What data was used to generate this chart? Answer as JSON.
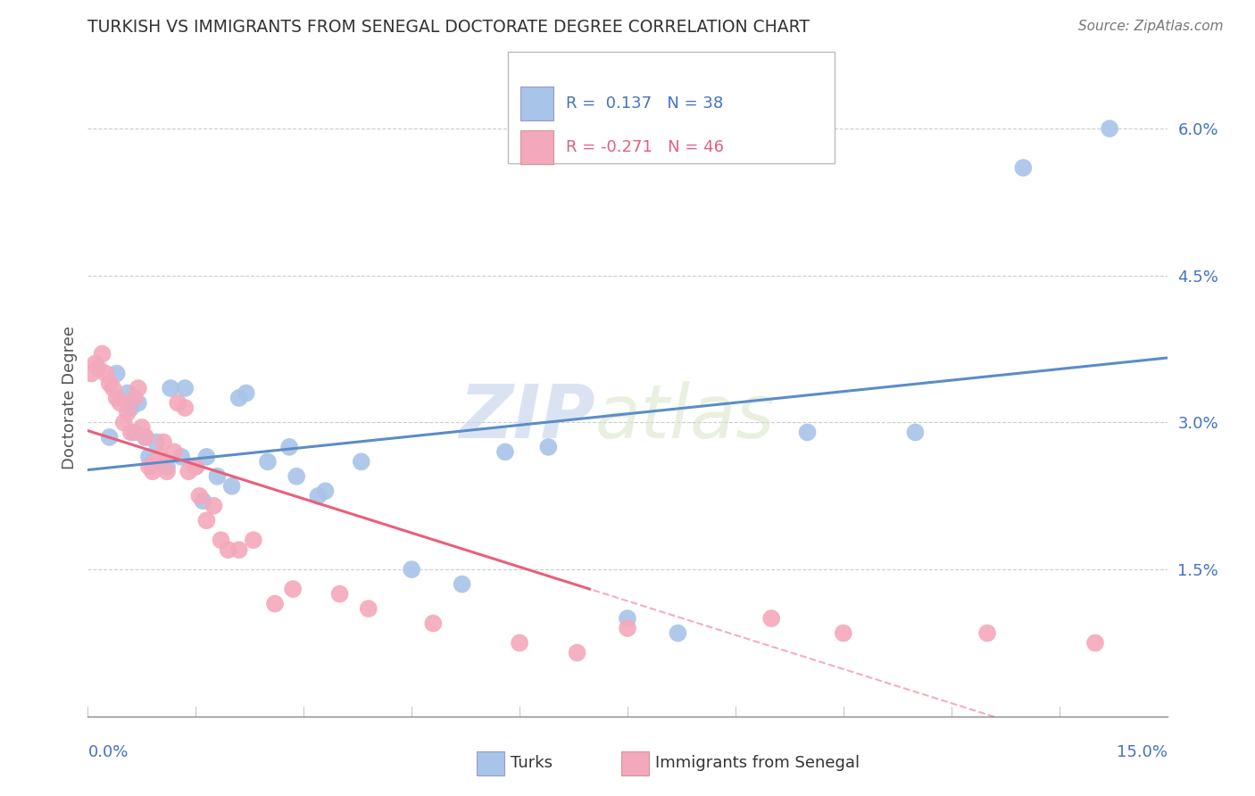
{
  "title": "TURKISH VS IMMIGRANTS FROM SENEGAL DOCTORATE DEGREE CORRELATION CHART",
  "source": "Source: ZipAtlas.com",
  "ylabel": "Doctorate Degree",
  "yaxis_ticks": [
    0.0,
    1.5,
    3.0,
    4.5,
    6.0
  ],
  "yaxis_labels": [
    "",
    "1.5%",
    "3.0%",
    "4.5%",
    "6.0%"
  ],
  "xmin": 0.0,
  "xmax": 15.0,
  "ymin": 0.0,
  "ymax": 6.5,
  "turks_color": "#a8c4e8",
  "turks_line_color": "#5b8dc8",
  "senegal_color": "#f4a8bc",
  "senegal_line_color": "#e8607a",
  "watermark_zip": "ZIP",
  "watermark_atlas": "atlas",
  "turks_x": [
    0.3,
    0.4,
    0.55,
    0.6,
    0.65,
    0.7,
    0.8,
    0.85,
    0.9,
    0.95,
    1.05,
    1.1,
    1.15,
    1.3,
    1.35,
    1.5,
    1.6,
    1.65,
    1.8,
    2.0,
    2.1,
    2.2,
    2.5,
    2.8,
    2.9,
    3.2,
    3.3,
    3.8,
    4.5,
    5.2,
    5.8,
    6.4,
    7.5,
    8.2,
    10.0,
    11.5,
    13.0,
    14.2
  ],
  "turks_y": [
    2.85,
    3.5,
    3.3,
    3.15,
    2.9,
    3.2,
    2.85,
    2.65,
    2.6,
    2.8,
    2.6,
    2.55,
    3.35,
    2.65,
    3.35,
    2.55,
    2.2,
    2.65,
    2.45,
    2.35,
    3.25,
    3.3,
    2.6,
    2.75,
    2.45,
    2.25,
    2.3,
    2.6,
    1.5,
    1.35,
    2.7,
    2.75,
    1.0,
    0.85,
    2.9,
    2.9,
    5.6,
    6.0
  ],
  "senegal_x": [
    0.05,
    0.1,
    0.15,
    0.2,
    0.25,
    0.3,
    0.35,
    0.4,
    0.45,
    0.5,
    0.55,
    0.6,
    0.65,
    0.7,
    0.75,
    0.8,
    0.85,
    0.9,
    0.95,
    1.0,
    1.05,
    1.1,
    1.2,
    1.25,
    1.35,
    1.4,
    1.5,
    1.55,
    1.65,
    1.75,
    1.85,
    1.95,
    2.1,
    2.3,
    2.6,
    2.85,
    3.5,
    3.9,
    4.8,
    6.0,
    6.8,
    7.5,
    9.5,
    10.5,
    12.5,
    14.0
  ],
  "senegal_y": [
    3.5,
    3.6,
    3.55,
    3.7,
    3.5,
    3.4,
    3.35,
    3.25,
    3.2,
    3.0,
    3.1,
    2.9,
    3.25,
    3.35,
    2.95,
    2.85,
    2.55,
    2.5,
    2.6,
    2.65,
    2.8,
    2.5,
    2.7,
    3.2,
    3.15,
    2.5,
    2.55,
    2.25,
    2.0,
    2.15,
    1.8,
    1.7,
    1.7,
    1.8,
    1.15,
    1.3,
    1.25,
    1.1,
    0.95,
    0.75,
    0.65,
    0.9,
    1.0,
    0.85,
    0.85,
    0.75
  ],
  "background_color": "#ffffff",
  "grid_color": "#cccccc"
}
